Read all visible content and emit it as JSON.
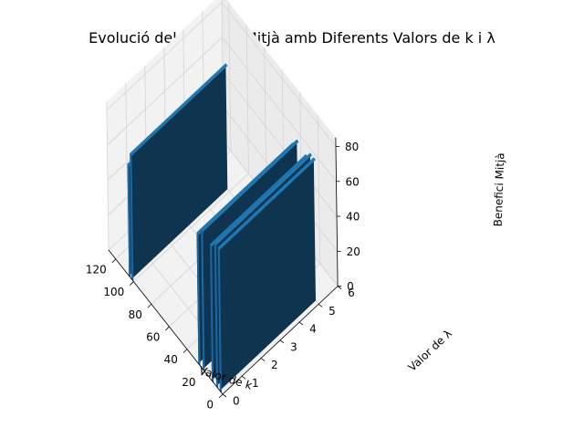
{
  "chart_data": {
    "type": "bar",
    "title": "Evolució del Benefici Mitjà amb Diferents Valors de k i λ",
    "xlabel": "Valor de k",
    "ylabel": "Valor de λ",
    "zlabel": "Benefici Mitjà",
    "xlim": [
      0,
      128
    ],
    "ylim": [
      0,
      6
    ],
    "zlim": [
      0,
      85
    ],
    "xticks": [
      "0",
      "20",
      "40",
      "60",
      "80",
      "100",
      "120"
    ],
    "yticks": [
      "0",
      "1",
      "2",
      "3",
      "4",
      "5",
      "6"
    ],
    "zticks": [
      "0",
      "20",
      "40",
      "60",
      "80"
    ],
    "grid": true,
    "bar_color": "#1f77b4",
    "bars": [
      {
        "k": 1,
        "lambda_min": 0,
        "lambda_max": 5,
        "value": 82
      },
      {
        "k": 5,
        "lambda_min": 0,
        "lambda_max": 5,
        "value": 82
      },
      {
        "k": 10,
        "lambda_min": 0,
        "lambda_max": 5,
        "value": 78
      },
      {
        "k": 20,
        "lambda_min": 0,
        "lambda_max": 5,
        "value": 80
      },
      {
        "k": 25,
        "lambda_min": 0,
        "lambda_max": 5,
        "value": 75
      },
      {
        "k": 100,
        "lambda_min": 0,
        "lambda_max": 5,
        "value": 72
      },
      {
        "k": 103,
        "lambda_min": 0,
        "lambda_max": 5,
        "value": 64
      }
    ]
  }
}
